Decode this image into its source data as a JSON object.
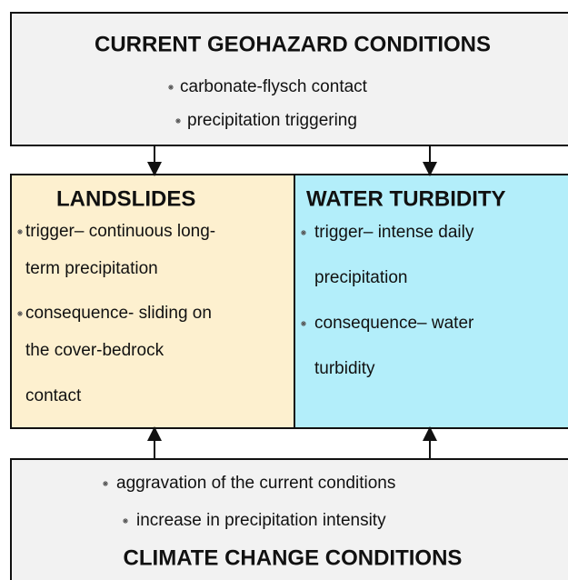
{
  "top": {
    "title": "CURRENT GEOHAZARD CONDITIONS",
    "items": [
      "carbonate-flysch contact",
      "precipitation triggering"
    ]
  },
  "landslides": {
    "title": "LANDSLIDES",
    "items": [
      [
        "trigger– continuous long-",
        "term precipitation"
      ],
      [
        "consequence- sliding on",
        "the cover-bedrock",
        "contact"
      ]
    ]
  },
  "water_turbidity": {
    "title": "WATER TURBIDITY",
    "items": [
      [
        "trigger– intense daily",
        "precipitation"
      ],
      [
        "consequence– water",
        "turbidity"
      ]
    ]
  },
  "bottom": {
    "items": [
      "aggravation of the current conditions",
      "increase in precipitation intensity"
    ],
    "title": "CLIMATE CHANGE CONDITIONS"
  }
}
